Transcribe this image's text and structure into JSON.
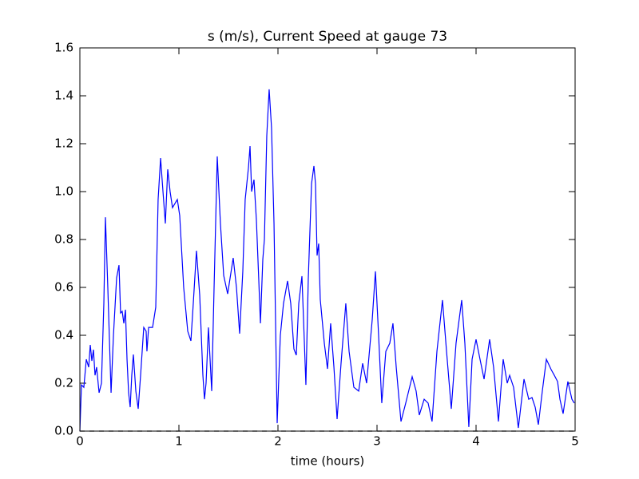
{
  "chart_data": {
    "type": "line",
    "title": "s (m/s), Current Speed at gauge 73",
    "xlabel": "time (hours)",
    "xlim": [
      0,
      5
    ],
    "ylim": [
      0,
      1.6
    ],
    "xticks": [
      0,
      1,
      2,
      3,
      4,
      5
    ],
    "yticks": [
      {
        "value": 0,
        "label": "0.0"
      },
      0.2,
      0.4,
      0.6,
      0.8,
      {
        "value": 1,
        "label": "1.0"
      },
      1.2,
      1.4,
      1.6
    ],
    "series": [
      {
        "color": "#0000ff",
        "dashed": false,
        "x": [
          0,
          0.016,
          0.04,
          0.065,
          0.089,
          0.105,
          0.121,
          0.137,
          0.153,
          0.169,
          0.194,
          0.218,
          0.242,
          0.258,
          0.282,
          0.315,
          0.339,
          0.371,
          0.395,
          0.411,
          0.427,
          0.444,
          0.46,
          0.476,
          0.492,
          0.508,
          0.524,
          0.54,
          0.565,
          0.589,
          0.613,
          0.645,
          0.669,
          0.677,
          0.694,
          0.734,
          0.766,
          0.79,
          0.815,
          0.839,
          0.863,
          0.887,
          0.911,
          0.935,
          0.984,
          1.008,
          1.048,
          1.089,
          1.121,
          1.145,
          1.177,
          1.21,
          1.242,
          1.258,
          1.274,
          1.298,
          1.331,
          1.355,
          1.387,
          1.419,
          1.452,
          1.492,
          1.548,
          1.581,
          1.613,
          1.645,
          1.669,
          1.702,
          1.718,
          1.734,
          1.758,
          1.782,
          1.806,
          1.823,
          1.847,
          1.863,
          1.887,
          1.911,
          1.935,
          1.96,
          1.992,
          2.024,
          2.056,
          2.097,
          2.129,
          2.161,
          2.185,
          2.21,
          2.242,
          2.258,
          2.282,
          2.306,
          2.339,
          2.363,
          2.379,
          2.395,
          2.411,
          2.427,
          2.468,
          2.5,
          2.532,
          2.565,
          2.597,
          2.637,
          2.685,
          2.718,
          2.766,
          2.815,
          2.855,
          2.895,
          2.952,
          2.984,
          3.016,
          3.048,
          3.089,
          3.129,
          3.161,
          3.194,
          3.242,
          3.29,
          3.355,
          3.395,
          3.427,
          3.476,
          3.516,
          3.556,
          3.605,
          3.661,
          3.702,
          3.75,
          3.798,
          3.855,
          3.887,
          3.927,
          3.96,
          4.0,
          4.04,
          4.081,
          4.137,
          4.177,
          4.226,
          4.274,
          4.315,
          4.339,
          4.379,
          4.427,
          4.484,
          4.532,
          4.565,
          4.597,
          4.629,
          4.669,
          4.71,
          4.758,
          4.79,
          4.823,
          4.847,
          4.879,
          4.927,
          4.968,
          4.992
        ],
        "values": [
          0,
          0.193,
          0.183,
          0.3,
          0.267,
          0.36,
          0.293,
          0.34,
          0.233,
          0.267,
          0.16,
          0.2,
          0.533,
          0.893,
          0.6,
          0.16,
          0.4,
          0.64,
          0.693,
          0.493,
          0.5,
          0.45,
          0.507,
          0.3,
          0.16,
          0.1,
          0.233,
          0.32,
          0.167,
          0.093,
          0.233,
          0.433,
          0.417,
          0.333,
          0.433,
          0.433,
          0.517,
          0.967,
          1.14,
          1.0,
          0.867,
          1.093,
          1.0,
          0.933,
          0.967,
          0.9,
          0.6,
          0.417,
          0.377,
          0.533,
          0.753,
          0.567,
          0.233,
          0.133,
          0.2,
          0.433,
          0.167,
          0.6,
          1.147,
          0.867,
          0.65,
          0.573,
          0.723,
          0.6,
          0.407,
          0.667,
          0.967,
          1.1,
          1.19,
          1.0,
          1.05,
          0.883,
          0.633,
          0.45,
          0.717,
          0.8,
          1.233,
          1.427,
          1.267,
          0.867,
          0.033,
          0.4,
          0.533,
          0.627,
          0.533,
          0.343,
          0.317,
          0.533,
          0.647,
          0.467,
          0.193,
          0.633,
          1.033,
          1.107,
          1.033,
          0.733,
          0.783,
          0.55,
          0.367,
          0.26,
          0.45,
          0.267,
          0.05,
          0.283,
          0.533,
          0.333,
          0.183,
          0.167,
          0.283,
          0.2,
          0.467,
          0.667,
          0.4,
          0.117,
          0.333,
          0.367,
          0.45,
          0.267,
          0.04,
          0.117,
          0.227,
          0.167,
          0.067,
          0.133,
          0.117,
          0.04,
          0.333,
          0.547,
          0.333,
          0.093,
          0.367,
          0.547,
          0.367,
          0.017,
          0.3,
          0.383,
          0.3,
          0.217,
          0.383,
          0.267,
          0.04,
          0.3,
          0.2,
          0.233,
          0.183,
          0.013,
          0.217,
          0.133,
          0.14,
          0.1,
          0.027,
          0.167,
          0.3,
          0.257,
          0.233,
          0.207,
          0.133,
          0.073,
          0.207,
          0.133,
          0.117
        ]
      },
      {
        "color": "#000000",
        "dashed": true,
        "x": [
          0,
          5
        ],
        "values": [
          0,
          0
        ]
      }
    ]
  }
}
